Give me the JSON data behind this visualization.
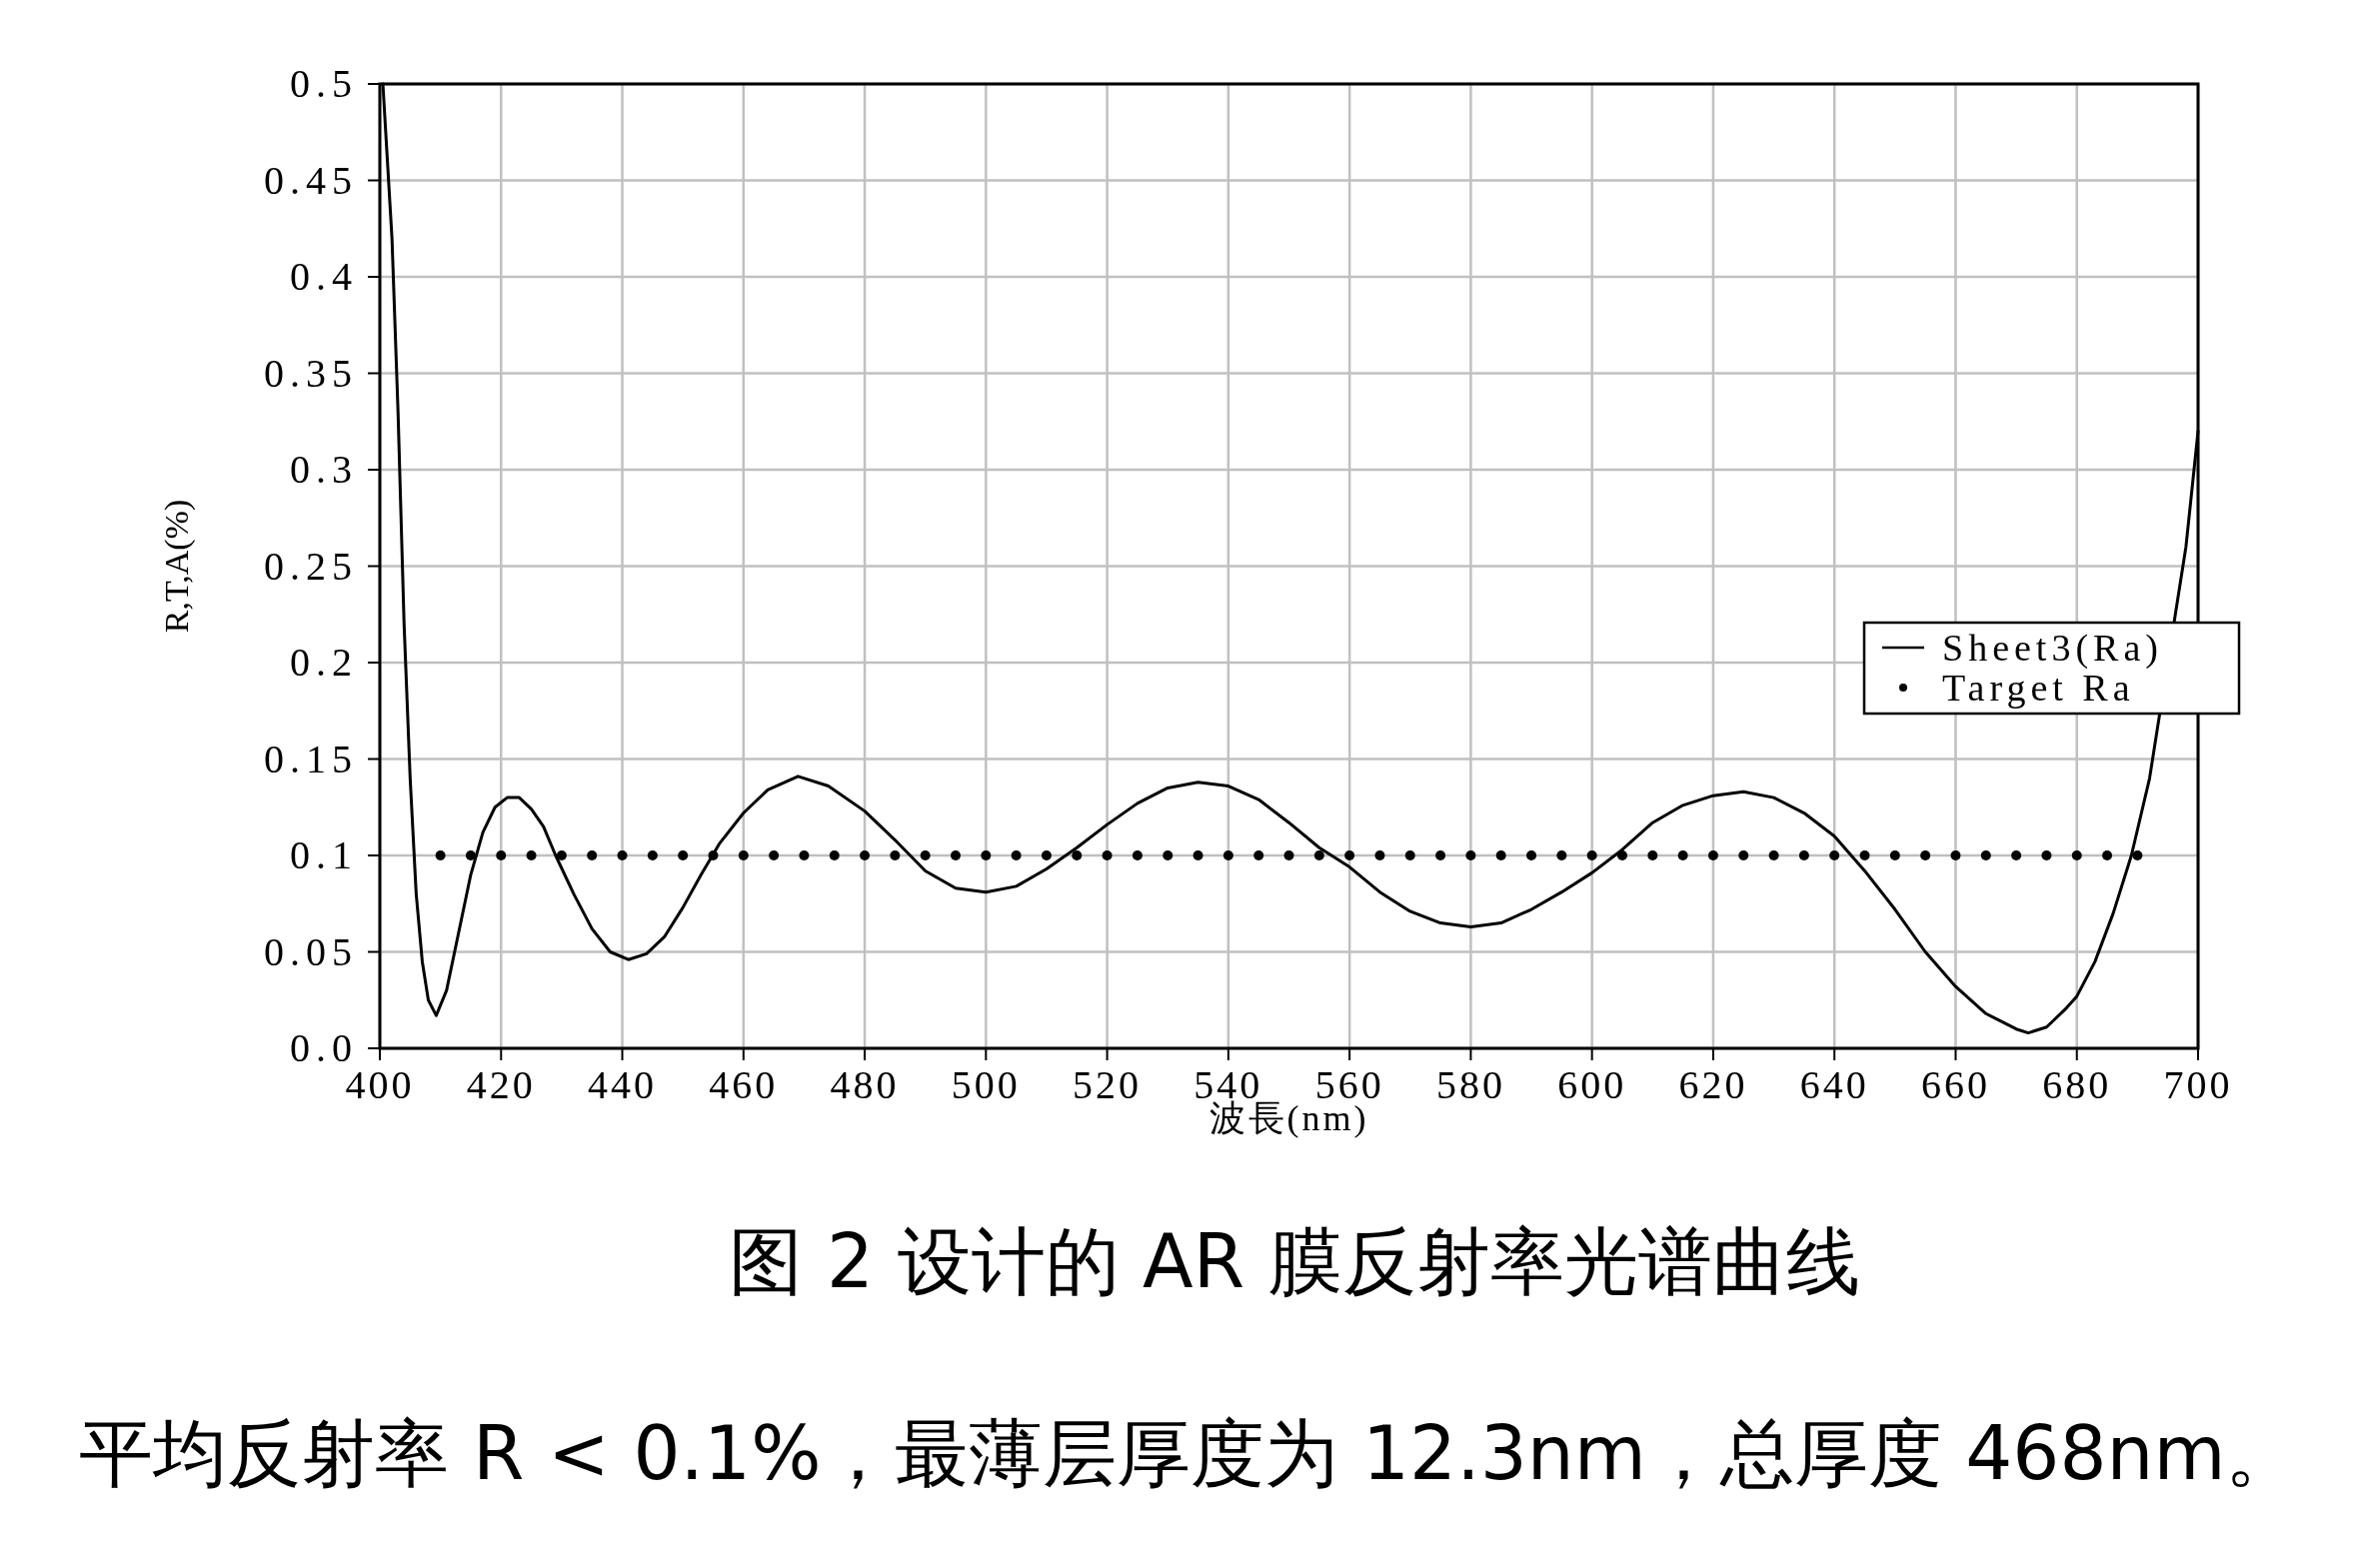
{
  "chart_data": {
    "type": "line",
    "title": "图 2 设计的 AR 膜反射率光谱曲线",
    "xlabel": "波長(nm)",
    "ylabel": "R,T,A(%)",
    "annotations": [
      "平均反射率 R < 0.1%，最薄层厚度为 12.3nm，总厚度 468nm。"
    ],
    "xlim": [
      400,
      700
    ],
    "xticks": [
      400,
      420,
      440,
      460,
      480,
      500,
      520,
      540,
      560,
      580,
      600,
      620,
      640,
      660,
      680,
      700
    ],
    "ylim": [
      0,
      0.5
    ],
    "yticks": [
      {
        "value": 0,
        "label": "0.0"
      },
      0.05,
      0.1,
      0.15,
      0.2,
      0.25,
      0.3,
      0.35,
      0.4,
      0.45,
      0.5
    ],
    "grid": true,
    "legend": "right",
    "series": [
      {
        "name": "Sheet3(Ra)",
        "color": "#000000",
        "line_style": "solid",
        "x": [
          400.5,
          402,
          403,
          404,
          405,
          406,
          407,
          408,
          409.3,
          411,
          413,
          415,
          417,
          419,
          421,
          423,
          425,
          427,
          429,
          432,
          435,
          438,
          441,
          444,
          447,
          450,
          453,
          456,
          460,
          464,
          469,
          474,
          480,
          485,
          490,
          495,
          500,
          505,
          510,
          515,
          520,
          525,
          530,
          535,
          540,
          545,
          550,
          555,
          560,
          565,
          570,
          575,
          580,
          585,
          590,
          595,
          600,
          605,
          610,
          615,
          620,
          625,
          630,
          635,
          640,
          645,
          650,
          655,
          660,
          665,
          670,
          672,
          675,
          678,
          680,
          683,
          686,
          689,
          692,
          698,
          700
        ],
        "values": [
          0.5,
          0.42,
          0.33,
          0.22,
          0.14,
          0.08,
          0.045,
          0.025,
          0.017,
          0.03,
          0.06,
          0.09,
          0.112,
          0.125,
          0.13,
          0.13,
          0.124,
          0.115,
          0.1,
          0.08,
          0.062,
          0.05,
          0.046,
          0.049,
          0.058,
          0.073,
          0.09,
          0.106,
          0.122,
          0.134,
          0.141,
          0.136,
          0.123,
          0.108,
          0.092,
          0.083,
          0.081,
          0.084,
          0.093,
          0.104,
          0.116,
          0.127,
          0.135,
          0.138,
          0.136,
          0.129,
          0.117,
          0.104,
          0.094,
          0.081,
          0.071,
          0.065,
          0.063,
          0.065,
          0.072,
          0.081,
          0.091,
          0.103,
          0.117,
          0.126,
          0.131,
          0.133,
          0.13,
          0.122,
          0.11,
          0.092,
          0.072,
          0.05,
          0.032,
          0.018,
          0.01,
          0.008,
          0.011,
          0.02,
          0.027,
          0.045,
          0.07,
          0.1,
          0.14,
          0.26,
          0.32
        ]
      },
      {
        "name": "Target Ra",
        "type": "scatter",
        "color": "#000000",
        "marker": "circle",
        "x": [
          410,
          415,
          420,
          425,
          430,
          435,
          440,
          445,
          450,
          455,
          460,
          465,
          470,
          475,
          480,
          485,
          490,
          495,
          500,
          505,
          510,
          515,
          520,
          525,
          530,
          535,
          540,
          545,
          550,
          555,
          560,
          565,
          570,
          575,
          580,
          585,
          590,
          595,
          600,
          605,
          610,
          615,
          620,
          625,
          630,
          635,
          640,
          645,
          650,
          655,
          660,
          665,
          670,
          675,
          680,
          685,
          690
        ],
        "values": [
          0.1,
          0.1,
          0.1,
          0.1,
          0.1,
          0.1,
          0.1,
          0.1,
          0.1,
          0.1,
          0.1,
          0.1,
          0.1,
          0.1,
          0.1,
          0.1,
          0.1,
          0.1,
          0.1,
          0.1,
          0.1,
          0.1,
          0.1,
          0.1,
          0.1,
          0.1,
          0.1,
          0.1,
          0.1,
          0.1,
          0.1,
          0.1,
          0.1,
          0.1,
          0.1,
          0.1,
          0.1,
          0.1,
          0.1,
          0.1,
          0.1,
          0.1,
          0.1,
          0.1,
          0.1,
          0.1,
          0.1,
          0.1,
          0.1,
          0.1,
          0.1,
          0.1,
          0.1,
          0.1,
          0.1,
          0.1,
          0.1
        ]
      }
    ]
  }
}
